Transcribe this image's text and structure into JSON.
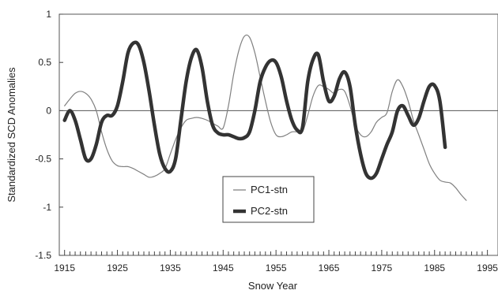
{
  "chart_data": {
    "type": "line",
    "xlabel": "Snow Year",
    "ylabel": "Standardized SCD Anomalies",
    "xlim": [
      1914,
      1997
    ],
    "ylim": [
      -1.5,
      1.0
    ],
    "xticks": [
      1915,
      1925,
      1935,
      1945,
      1955,
      1965,
      1975,
      1985,
      1995
    ],
    "yticks": [
      1,
      0.5,
      0,
      -0.5,
      -1,
      -1.5
    ],
    "ytick_labels": [
      "1",
      "0.5",
      "0",
      "-0.5",
      "-1",
      "-1.5"
    ],
    "minor_x_tick_step": 1,
    "zero_line": true,
    "grid": false,
    "legend": {
      "placement": "center-left inside plot",
      "entries": [
        "PC1-stn",
        "PC2-stn"
      ]
    },
    "series": [
      {
        "name": "PC1-stn",
        "style": "thin",
        "x": [
          1915,
          1916,
          1917,
          1918,
          1919,
          1920,
          1921,
          1922,
          1923,
          1924,
          1925,
          1926,
          1927,
          1928,
          1929,
          1930,
          1931,
          1932,
          1933,
          1934,
          1935,
          1936,
          1937,
          1938,
          1939,
          1940,
          1941,
          1942,
          1943,
          1944,
          1945,
          1946,
          1947,
          1948,
          1949,
          1950,
          1951,
          1952,
          1953,
          1954,
          1955,
          1956,
          1957,
          1958,
          1959,
          1960,
          1961,
          1962,
          1963,
          1964,
          1965,
          1966,
          1967,
          1968,
          1969,
          1970,
          1971,
          1972,
          1973,
          1974,
          1975,
          1976,
          1977,
          1978,
          1979,
          1980,
          1981,
          1982,
          1983,
          1984,
          1985,
          1986,
          1987,
          1988,
          1989,
          1990,
          1991
        ],
        "values": [
          0.05,
          0.12,
          0.18,
          0.2,
          0.18,
          0.12,
          0.0,
          -0.22,
          -0.4,
          -0.52,
          -0.57,
          -0.58,
          -0.58,
          -0.6,
          -0.63,
          -0.66,
          -0.69,
          -0.68,
          -0.65,
          -0.6,
          -0.45,
          -0.3,
          -0.18,
          -0.1,
          -0.08,
          -0.07,
          -0.08,
          -0.1,
          -0.13,
          -0.16,
          -0.18,
          0.05,
          0.38,
          0.63,
          0.77,
          0.76,
          0.6,
          0.35,
          0.1,
          -0.12,
          -0.25,
          -0.27,
          -0.25,
          -0.22,
          -0.22,
          -0.22,
          -0.05,
          0.15,
          0.26,
          0.25,
          0.22,
          0.18,
          0.22,
          0.2,
          0.05,
          -0.15,
          -0.25,
          -0.27,
          -0.22,
          -0.12,
          -0.07,
          -0.02,
          0.2,
          0.32,
          0.25,
          0.1,
          -0.1,
          -0.25,
          -0.4,
          -0.55,
          -0.65,
          -0.72,
          -0.74,
          -0.75,
          -0.8,
          -0.87,
          -0.93
        ]
      },
      {
        "name": "PC2-stn",
        "style": "thick",
        "x": [
          1915,
          1916,
          1917,
          1918,
          1919,
          1920,
          1921,
          1922,
          1923,
          1924,
          1925,
          1926,
          1927,
          1928,
          1929,
          1930,
          1931,
          1932,
          1933,
          1934,
          1935,
          1936,
          1937,
          1938,
          1939,
          1940,
          1941,
          1942,
          1943,
          1944,
          1945,
          1946,
          1947,
          1948,
          1949,
          1950,
          1951,
          1952,
          1953,
          1954,
          1955,
          1956,
          1957,
          1958,
          1959,
          1960,
          1961,
          1962,
          1963,
          1964,
          1965,
          1966,
          1967,
          1968,
          1969,
          1970,
          1971,
          1972,
          1973,
          1974,
          1975,
          1976,
          1977,
          1978,
          1979,
          1980,
          1981,
          1982,
          1983,
          1984,
          1985,
          1986,
          1987
        ],
        "values": [
          -0.1,
          0.0,
          -0.1,
          -0.3,
          -0.5,
          -0.5,
          -0.35,
          -0.12,
          -0.05,
          -0.05,
          0.05,
          0.3,
          0.6,
          0.7,
          0.68,
          0.5,
          0.2,
          -0.15,
          -0.45,
          -0.6,
          -0.63,
          -0.5,
          -0.1,
          0.3,
          0.55,
          0.63,
          0.45,
          0.1,
          -0.15,
          -0.23,
          -0.25,
          -0.25,
          -0.27,
          -0.29,
          -0.28,
          -0.22,
          0.0,
          0.3,
          0.45,
          0.52,
          0.5,
          0.35,
          0.1,
          -0.1,
          -0.2,
          -0.18,
          0.3,
          0.53,
          0.58,
          0.3,
          0.1,
          0.15,
          0.33,
          0.4,
          0.25,
          -0.15,
          -0.45,
          -0.65,
          -0.7,
          -0.65,
          -0.5,
          -0.35,
          -0.22,
          0.0,
          0.05,
          -0.05,
          -0.15,
          -0.08,
          0.1,
          0.25,
          0.26,
          0.1,
          -0.38
        ]
      }
    ]
  }
}
